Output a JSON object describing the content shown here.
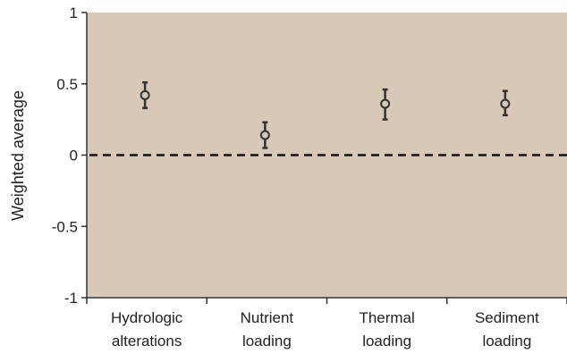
{
  "chart_data": {
    "type": "scatter",
    "title": "",
    "xlabel": "",
    "ylabel": "Weighted average",
    "ylim": [
      -1,
      1
    ],
    "yticks": [
      "1",
      "0.5",
      "0",
      "-0.5",
      "-1"
    ],
    "categories": [
      [
        "Hydrologic",
        "alterations"
      ],
      [
        "Nutrient",
        "loading"
      ],
      [
        "Thermal",
        "loading"
      ],
      [
        "Sediment",
        "loading"
      ]
    ],
    "values": [
      0.42,
      0.14,
      0.36,
      0.36
    ],
    "error_low": [
      0.33,
      0.05,
      0.25,
      0.28
    ],
    "error_high": [
      0.51,
      0.23,
      0.46,
      0.45
    ],
    "reference_line": 0,
    "grid": false,
    "legend": "none",
    "colors": {
      "plot_background": "#d8c8b8",
      "marker": "#333333",
      "axis": "#333333"
    }
  }
}
